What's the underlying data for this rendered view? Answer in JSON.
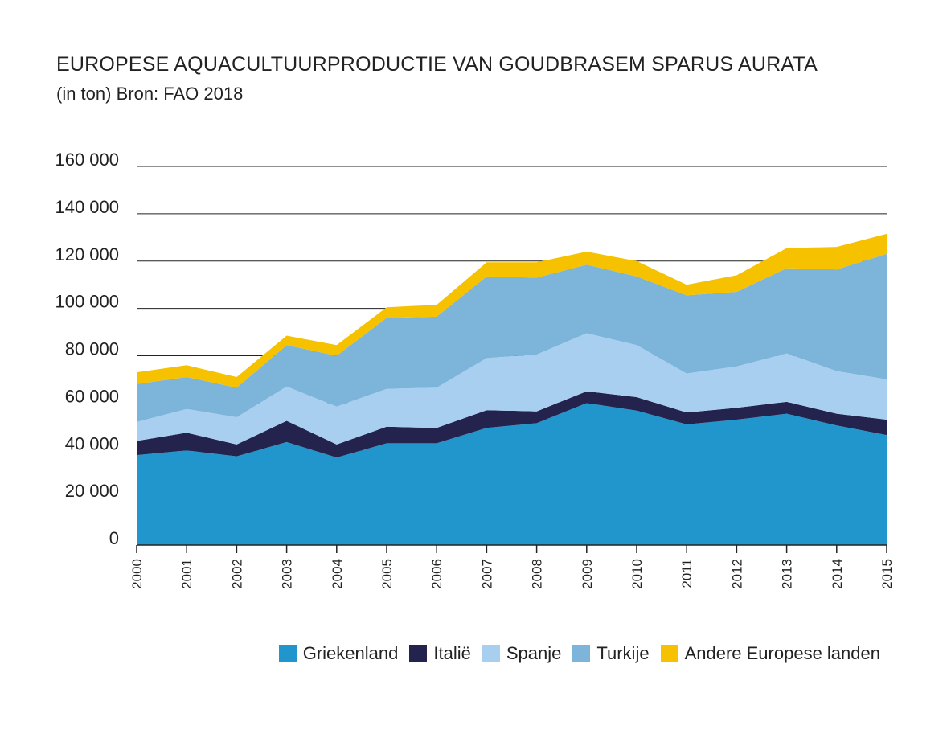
{
  "header": {
    "title": "EUROPESE AQUACULTUURPRODUCTIE VAN GOUDBRASEM SPARUS AURATA",
    "subtitle": "(in ton) Bron: FAO 2018"
  },
  "chart_data": {
    "type": "area",
    "stacked": true,
    "title": "EUROPESE AQUACULTUURPRODUCTIE VAN GOUDBRASEM SPARUS AURATA",
    "subtitle": "(in ton) Bron: FAO 2018",
    "xlabel": "",
    "ylabel": "",
    "ylim": [
      0,
      160000
    ],
    "yticks": [
      0,
      20000,
      40000,
      60000,
      80000,
      100000,
      120000,
      140000,
      160000
    ],
    "ytick_labels": [
      "0",
      "20 000",
      "40 000",
      "60 000",
      "80 000",
      "100 000",
      "120 000",
      "140 000",
      "160 000"
    ],
    "x": [
      "2000",
      "2001",
      "2002",
      "2003",
      "2004",
      "2005",
      "2006",
      "2007",
      "2008",
      "2009",
      "2010",
      "2011",
      "2012",
      "2013",
      "2014",
      "2015"
    ],
    "grid": "horizontal",
    "legend_position": "bottom-right",
    "series": [
      {
        "name": "Griekenland",
        "color": "#2196cc",
        "values": [
          38000,
          40000,
          37500,
          43500,
          37000,
          43000,
          43000,
          49500,
          51500,
          60000,
          56800,
          51000,
          53000,
          55500,
          50500,
          46500
        ]
      },
      {
        "name": "Italië",
        "color": "#23234d",
        "values": [
          6000,
          7500,
          5000,
          9000,
          5500,
          7000,
          6500,
          7500,
          5000,
          5000,
          5700,
          5000,
          5000,
          5000,
          5000,
          6500
        ]
      },
      {
        "name": "Spanje",
        "color": "#a9cff0",
        "values": [
          8000,
          10000,
          11500,
          14500,
          16000,
          16000,
          17000,
          22000,
          24000,
          24500,
          22000,
          16500,
          17500,
          20500,
          18000,
          17000
        ]
      },
      {
        "name": "Turkije",
        "color": "#7db4da",
        "values": [
          16000,
          13500,
          12500,
          17500,
          21500,
          30000,
          30000,
          34500,
          32500,
          29000,
          29000,
          33000,
          31500,
          36000,
          43000,
          53000
        ]
      },
      {
        "name": "Andere Europese landen",
        "color": "#f6c200",
        "values": [
          5000,
          5000,
          4500,
          4000,
          4500,
          4500,
          5000,
          6000,
          6500,
          5500,
          6500,
          4500,
          7000,
          8500,
          9500,
          8500
        ]
      }
    ]
  }
}
